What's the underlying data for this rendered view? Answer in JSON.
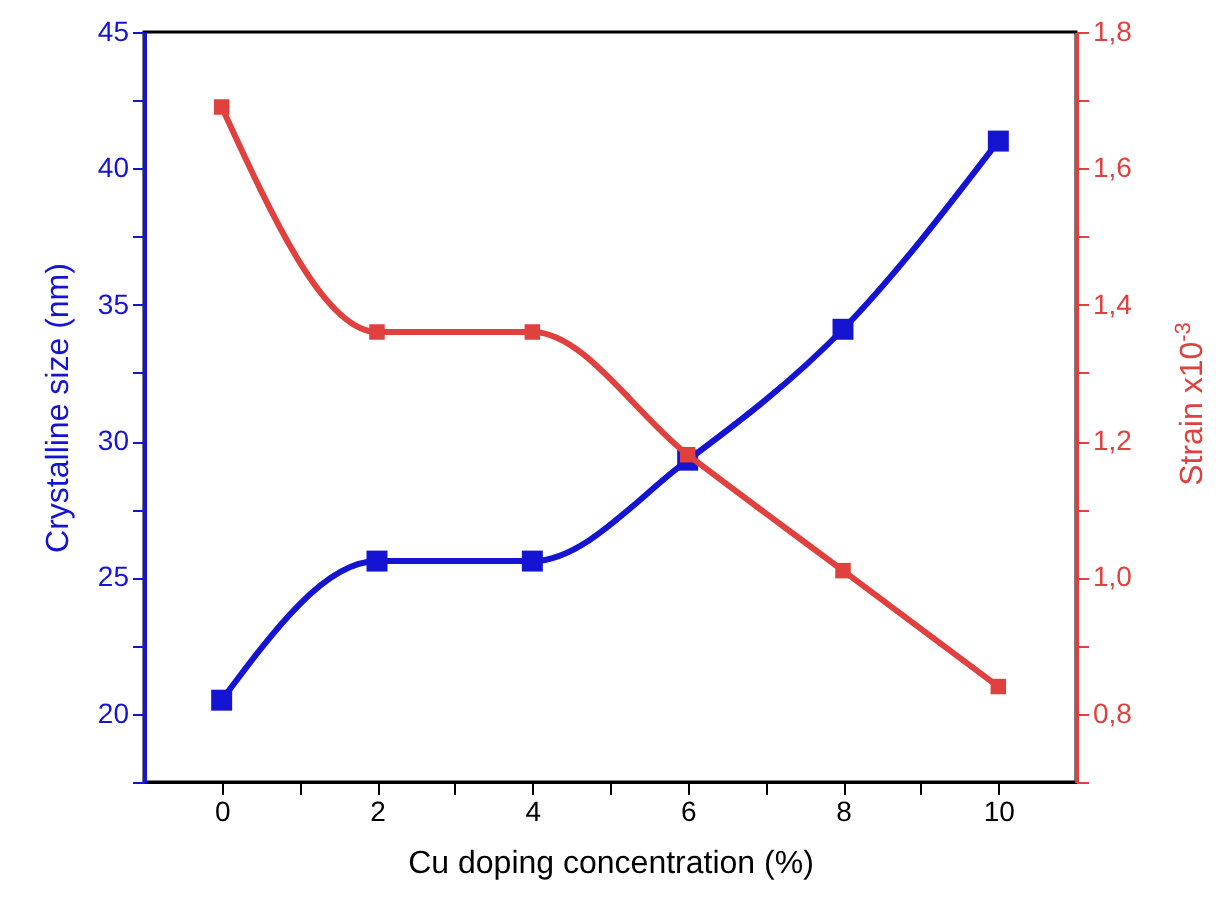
{
  "chart_data": {
    "type": "line",
    "xlabel": "Cu doping concentration (%)",
    "ylabel": "Crystalline size (nm)",
    "y2label": "Strain x10$^{-3}$",
    "x": [
      0,
      2,
      4,
      6,
      8,
      10
    ],
    "series": [
      {
        "color": "#1414d2",
        "values": [
          20.5,
          25.6,
          25.6,
          29.3,
          34.1,
          41.0
        ]
      },
      {
        "color": "#e0413e",
        "axis": "y2",
        "values": [
          1.69,
          1.36,
          1.36,
          1.18,
          1.01,
          0.84
        ]
      }
    ],
    "xlim": [
      -1,
      11
    ],
    "xticks": [
      0,
      {
        "value": 1,
        "label": null
      },
      2,
      {
        "value": 3,
        "label": null
      },
      4,
      {
        "value": 5,
        "label": null
      },
      6,
      {
        "value": 7,
        "label": null
      },
      8,
      {
        "value": 9,
        "label": null
      },
      10
    ],
    "ylim": [
      17.5,
      45
    ],
    "yticks": [
      {
        "value": 17.5,
        "label": null
      },
      20,
      {
        "value": 22.5,
        "label": null
      },
      25,
      {
        "value": 27.5,
        "label": null
      },
      30,
      {
        "value": 32.5,
        "label": null
      },
      35,
      {
        "value": 37.5,
        "label": null
      },
      40,
      {
        "value": 42.5,
        "label": null
      },
      45
    ],
    "y2lim": [
      0.7,
      1.8
    ],
    "y2ticks": [
      {
        "value": 0.7,
        "label": null
      },
      {
        "value": 0.8,
        "label": "0,8"
      },
      {
        "value": 0.9,
        "label": null
      },
      {
        "value": 1.0,
        "label": "1,0"
      },
      {
        "value": 1.1,
        "label": null
      },
      {
        "value": 1.2,
        "label": "1,2"
      },
      {
        "value": 1.3,
        "label": null
      },
      {
        "value": 1.4,
        "label": "1,4"
      },
      {
        "value": 1.5,
        "label": null
      },
      {
        "value": 1.6,
        "label": "1,6"
      },
      {
        "value": 1.7,
        "label": null
      },
      {
        "value": 1.8,
        "label": "1,8"
      }
    ],
    "grid": false,
    "marker": "square",
    "line_style": "solid"
  }
}
